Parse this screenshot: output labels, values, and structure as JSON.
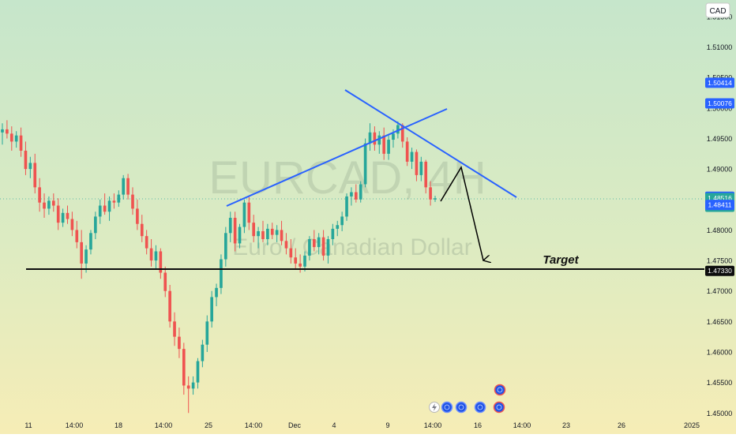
{
  "currency_label": "CAD",
  "watermark": {
    "symbol": "EURCAD, 4H",
    "name": "Euro / Canadian Dollar"
  },
  "target_label": "Target",
  "chart_data": {
    "type": "candlestick",
    "symbol": "EURCAD",
    "interval": "4H",
    "currency": "CAD",
    "ylim": [
      1.449,
      1.517
    ],
    "y_ticks": [
      1.45,
      1.455,
      1.46,
      1.465,
      1.47,
      1.475,
      1.48,
      1.485,
      1.49,
      1.495,
      1.5,
      1.505,
      1.51,
      1.515
    ],
    "y_tick_labels": [
      "1.45000",
      "1.45500",
      "1.46000",
      "1.46500",
      "1.47000",
      "1.47500",
      "1.48000",
      "1.48500",
      "1.49000",
      "1.49500",
      "1.50000",
      "1.50500",
      "1.51000",
      "1.51500"
    ],
    "x_tick_labels": [
      "11",
      "14:00",
      "18",
      "14:00",
      "25",
      "14:00",
      "Dec",
      "4",
      "9",
      "14:00",
      "16",
      "14:00",
      "23",
      "26",
      "2025"
    ],
    "price_badges": [
      {
        "value": "1.50414",
        "price": 1.50414,
        "color": "#2962ff"
      },
      {
        "value": "1.50076",
        "price": 1.50076,
        "color": "#2962ff"
      },
      {
        "value": "1.48546",
        "price": 1.48546,
        "color": "#2962ff"
      },
      {
        "value": "1.48516",
        "sub": "02:14:29",
        "price": 1.48516,
        "color": "#26a69a"
      },
      {
        "value": "1.48411",
        "price": 1.48411,
        "color": "#2962ff"
      },
      {
        "value": "1.47330",
        "price": 1.4733,
        "color": "#0d0d0d"
      }
    ],
    "last_price": 1.48516,
    "countdown": "02:14:29",
    "target_level": 1.4733,
    "candles": [
      [
        1.496,
        1.4975,
        1.494,
        1.4965
      ],
      [
        1.4965,
        1.498,
        1.495,
        1.4958
      ],
      [
        1.4958,
        1.497,
        1.493,
        1.4945
      ],
      [
        1.4945,
        1.4962,
        1.4935,
        1.4955
      ],
      [
        1.4955,
        1.4968,
        1.492,
        1.493
      ],
      [
        1.493,
        1.4945,
        1.489,
        1.49
      ],
      [
        1.49,
        1.492,
        1.4885,
        1.491
      ],
      [
        1.491,
        1.4925,
        1.486,
        1.487
      ],
      [
        1.487,
        1.4885,
        1.483,
        1.4845
      ],
      [
        1.4845,
        1.486,
        1.482,
        1.4835
      ],
      [
        1.4835,
        1.4855,
        1.4825,
        1.4848
      ],
      [
        1.4848,
        1.486,
        1.483,
        1.484
      ],
      [
        1.484,
        1.4852,
        1.48,
        1.4812
      ],
      [
        1.4812,
        1.4835,
        1.4805,
        1.4828
      ],
      [
        1.4828,
        1.484,
        1.481,
        1.4818
      ],
      [
        1.4818,
        1.483,
        1.479,
        1.48
      ],
      [
        1.48,
        1.4815,
        1.477,
        1.478
      ],
      [
        1.478,
        1.48,
        1.472,
        1.4745
      ],
      [
        1.4745,
        1.4775,
        1.473,
        1.4768
      ],
      [
        1.4768,
        1.48,
        1.476,
        1.4795
      ],
      [
        1.4795,
        1.483,
        1.4785,
        1.4822
      ],
      [
        1.4822,
        1.485,
        1.481,
        1.484
      ],
      [
        1.484,
        1.486,
        1.4825,
        1.483
      ],
      [
        1.483,
        1.4855,
        1.4815,
        1.4848
      ],
      [
        1.4848,
        1.486,
        1.4835,
        1.4845
      ],
      [
        1.4845,
        1.4865,
        1.4838,
        1.4858
      ],
      [
        1.4858,
        1.489,
        1.485,
        1.4885
      ],
      [
        1.4885,
        1.4892,
        1.485,
        1.4858
      ],
      [
        1.4858,
        1.487,
        1.4825,
        1.4835
      ],
      [
        1.4835,
        1.485,
        1.48,
        1.481
      ],
      [
        1.481,
        1.4825,
        1.478,
        1.479
      ],
      [
        1.479,
        1.48,
        1.476,
        1.477
      ],
      [
        1.477,
        1.4785,
        1.474,
        1.475
      ],
      [
        1.475,
        1.4775,
        1.4735,
        1.4765
      ],
      [
        1.4765,
        1.477,
        1.472,
        1.473
      ],
      [
        1.473,
        1.474,
        1.469,
        1.47
      ],
      [
        1.47,
        1.471,
        1.464,
        1.465
      ],
      [
        1.465,
        1.4665,
        1.461,
        1.4625
      ],
      [
        1.4625,
        1.464,
        1.459,
        1.4605
      ],
      [
        1.4605,
        1.4615,
        1.453,
        1.4545
      ],
      [
        1.4545,
        1.456,
        1.45,
        1.454
      ],
      [
        1.454,
        1.456,
        1.453,
        1.455
      ],
      [
        1.455,
        1.459,
        1.454,
        1.4585
      ],
      [
        1.4585,
        1.462,
        1.4575,
        1.4612
      ],
      [
        1.4612,
        1.466,
        1.46,
        1.465
      ],
      [
        1.465,
        1.47,
        1.464,
        1.469
      ],
      [
        1.469,
        1.4712,
        1.4675,
        1.4705
      ],
      [
        1.4705,
        1.476,
        1.4695,
        1.4752
      ],
      [
        1.4752,
        1.4805,
        1.474,
        1.4795
      ],
      [
        1.4795,
        1.483,
        1.478,
        1.482
      ],
      [
        1.482,
        1.483,
        1.4765,
        1.4778
      ],
      [
        1.4778,
        1.481,
        1.477,
        1.4805
      ],
      [
        1.4805,
        1.485,
        1.4795,
        1.4845
      ],
      [
        1.4845,
        1.4855,
        1.48,
        1.4812
      ],
      [
        1.4812,
        1.4825,
        1.478,
        1.479
      ],
      [
        1.479,
        1.4805,
        1.477,
        1.4798
      ],
      [
        1.4798,
        1.4815,
        1.478,
        1.4785
      ],
      [
        1.4785,
        1.481,
        1.4775,
        1.4802
      ],
      [
        1.4802,
        1.4812,
        1.4785,
        1.4792
      ],
      [
        1.4792,
        1.4808,
        1.478,
        1.48
      ],
      [
        1.48,
        1.4815,
        1.4775,
        1.4782
      ],
      [
        1.4782,
        1.4795,
        1.476,
        1.477
      ],
      [
        1.477,
        1.4785,
        1.4745,
        1.4755
      ],
      [
        1.4755,
        1.477,
        1.4735,
        1.4745
      ],
      [
        1.4745,
        1.476,
        1.473,
        1.474
      ],
      [
        1.474,
        1.4765,
        1.4732,
        1.4758
      ],
      [
        1.4758,
        1.479,
        1.475,
        1.4785
      ],
      [
        1.4785,
        1.48,
        1.4765,
        1.4772
      ],
      [
        1.4772,
        1.4795,
        1.476,
        1.4788
      ],
      [
        1.4788,
        1.48,
        1.475,
        1.4758
      ],
      [
        1.4758,
        1.479,
        1.4745,
        1.4785
      ],
      [
        1.4785,
        1.481,
        1.4775,
        1.4802
      ],
      [
        1.4802,
        1.4815,
        1.479,
        1.4808
      ],
      [
        1.4808,
        1.483,
        1.4798,
        1.4822
      ],
      [
        1.4822,
        1.486,
        1.4815,
        1.4855
      ],
      [
        1.4855,
        1.487,
        1.484,
        1.4862
      ],
      [
        1.4862,
        1.4875,
        1.4845,
        1.485
      ],
      [
        1.485,
        1.488,
        1.4845,
        1.4875
      ],
      [
        1.4875,
        1.495,
        1.487,
        1.4942
      ],
      [
        1.4942,
        1.4975,
        1.493,
        1.496
      ],
      [
        1.496,
        1.497,
        1.493,
        1.494
      ],
      [
        1.494,
        1.4962,
        1.4925,
        1.4955
      ],
      [
        1.4955,
        1.4968,
        1.4915,
        1.4925
      ],
      [
        1.4925,
        1.4955,
        1.4915,
        1.4948
      ],
      [
        1.4948,
        1.4965,
        1.4935,
        1.4958
      ],
      [
        1.4958,
        1.4978,
        1.495,
        1.4972
      ],
      [
        1.4972,
        1.4975,
        1.4935,
        1.4945
      ],
      [
        1.4945,
        1.4952,
        1.4905,
        1.4912
      ],
      [
        1.4912,
        1.4935,
        1.49,
        1.4928
      ],
      [
        1.4928,
        1.4932,
        1.488,
        1.489
      ],
      [
        1.489,
        1.492,
        1.488,
        1.4912
      ],
      [
        1.4912,
        1.4915,
        1.486,
        1.487
      ],
      [
        1.487,
        1.488,
        1.484,
        1.485
      ],
      [
        1.485,
        1.4856,
        1.4846,
        1.4852
      ]
    ],
    "annotations": {
      "rising_trendline": {
        "start": [
          1.4847
        ],
        "end": [
          1.5006
        ],
        "color": "#2962ff"
      },
      "falling_trendline": {
        "start": [
          1.5053
        ],
        "end": [
          1.485
        ],
        "color": "#2962ff"
      },
      "target_line": {
        "price": 1.4733,
        "label": "Target"
      },
      "projection_path": [
        1.4851,
        1.491,
        1.4739
      ]
    },
    "events": [
      {
        "icon": "lightning-icon"
      },
      {
        "icon": "economic-event-icon"
      },
      {
        "icon": "economic-event-icon"
      },
      {
        "icon": "economic-event-icon"
      },
      {
        "icon": "economic-event-icon"
      },
      {
        "icon": "economic-event-icon"
      }
    ],
    "colors": {
      "up": "#26a69a",
      "down": "#ef5350",
      "trendline": "#2962ff",
      "target": "#0d0d0d",
      "background_top": "#c6e6cb",
      "background_bottom": "#f4ecb8"
    }
  }
}
